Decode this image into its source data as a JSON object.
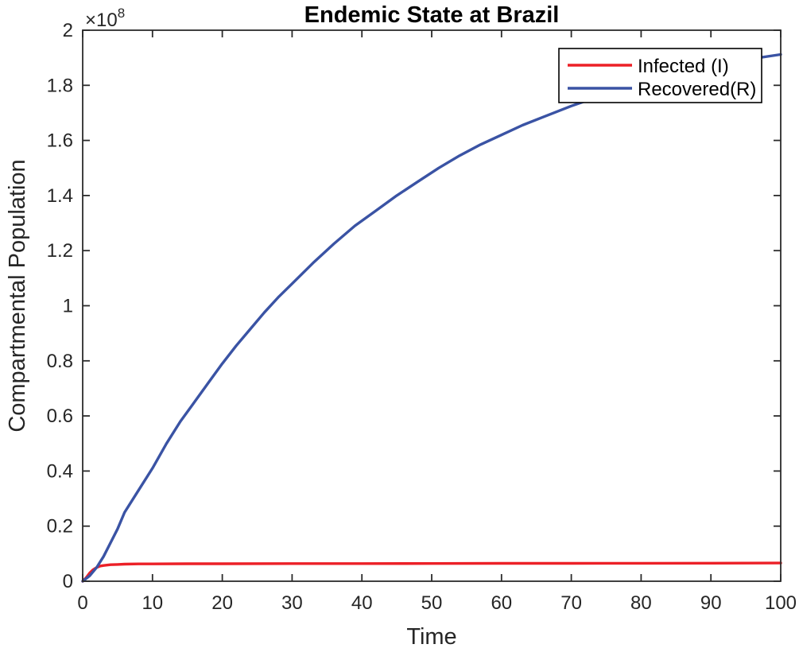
{
  "figure": {
    "title": "Endemic State at Brazil",
    "y_exponent_label": {
      "mantissa": "×10",
      "exponent": "8"
    },
    "xlabel": "Time",
    "ylabel": "Compartmental Population",
    "background_color": "#ffffff",
    "axis_color": "#2b2b2b",
    "tick_label_color": "#262626"
  },
  "legend": {
    "position": "upper-right",
    "border_color": "#000000",
    "background_color": "#ffffff",
    "entries": [
      {
        "label": "Infected (I)",
        "color": "#ec2027"
      },
      {
        "label": "Recovered(R)",
        "color": "#3a53a4"
      }
    ]
  },
  "chart_data": {
    "type": "line",
    "title": "Endemic State at Brazil",
    "xlabel": "Time",
    "ylabel": "Compartmental Population",
    "xlim": [
      0,
      100
    ],
    "ylim": [
      0,
      200000000
    ],
    "y_units": "1e8",
    "y_scale_exponent": 8,
    "grid": false,
    "legend_position": "upper right",
    "x_ticks": [
      0,
      10,
      20,
      30,
      40,
      50,
      60,
      70,
      80,
      90,
      100
    ],
    "y_ticks": [
      0,
      0.2,
      0.4,
      0.6,
      0.8,
      1,
      1.2,
      1.4,
      1.6,
      1.8,
      2
    ],
    "series": [
      {
        "name": "Infected (I)",
        "color": "#ec2027",
        "points_units_1e8": true,
        "points": [
          [
            0,
            0
          ],
          [
            0.5,
            0.013
          ],
          [
            1,
            0.03
          ],
          [
            1.5,
            0.042
          ],
          [
            2,
            0.05
          ],
          [
            2.5,
            0.055
          ],
          [
            3,
            0.057
          ],
          [
            4,
            0.06
          ],
          [
            5,
            0.061
          ],
          [
            6,
            0.062
          ],
          [
            8,
            0.063
          ],
          [
            10,
            0.063
          ],
          [
            15,
            0.0635
          ],
          [
            20,
            0.0635
          ],
          [
            30,
            0.064
          ],
          [
            40,
            0.064
          ],
          [
            50,
            0.0645
          ],
          [
            60,
            0.065
          ],
          [
            70,
            0.065
          ],
          [
            80,
            0.0652
          ],
          [
            90,
            0.0655
          ],
          [
            100,
            0.066
          ]
        ]
      },
      {
        "name": "Recovered(R)",
        "color": "#3a53a4",
        "points_units_1e8": true,
        "points": [
          [
            0,
            0
          ],
          [
            1,
            0.02
          ],
          [
            2,
            0.05
          ],
          [
            3,
            0.09
          ],
          [
            4,
            0.14
          ],
          [
            5,
            0.19
          ],
          [
            6,
            0.25
          ],
          [
            8,
            0.33
          ],
          [
            10,
            0.41
          ],
          [
            12,
            0.5
          ],
          [
            14,
            0.58
          ],
          [
            16,
            0.65
          ],
          [
            18,
            0.72
          ],
          [
            20,
            0.79
          ],
          [
            22,
            0.855
          ],
          [
            24,
            0.915
          ],
          [
            26,
            0.975
          ],
          [
            28,
            1.03
          ],
          [
            30,
            1.08
          ],
          [
            33,
            1.155
          ],
          [
            36,
            1.225
          ],
          [
            39,
            1.29
          ],
          [
            42,
            1.345
          ],
          [
            45,
            1.4
          ],
          [
            48,
            1.45
          ],
          [
            51,
            1.5
          ],
          [
            54,
            1.545
          ],
          [
            57,
            1.585
          ],
          [
            60,
            1.62
          ],
          [
            63,
            1.655
          ],
          [
            66,
            1.685
          ],
          [
            70,
            1.725
          ],
          [
            74,
            1.76
          ],
          [
            78,
            1.79
          ],
          [
            82,
            1.82
          ],
          [
            86,
            1.845
          ],
          [
            90,
            1.87
          ],
          [
            95,
            1.893
          ],
          [
            100,
            1.912
          ]
        ]
      }
    ]
  }
}
